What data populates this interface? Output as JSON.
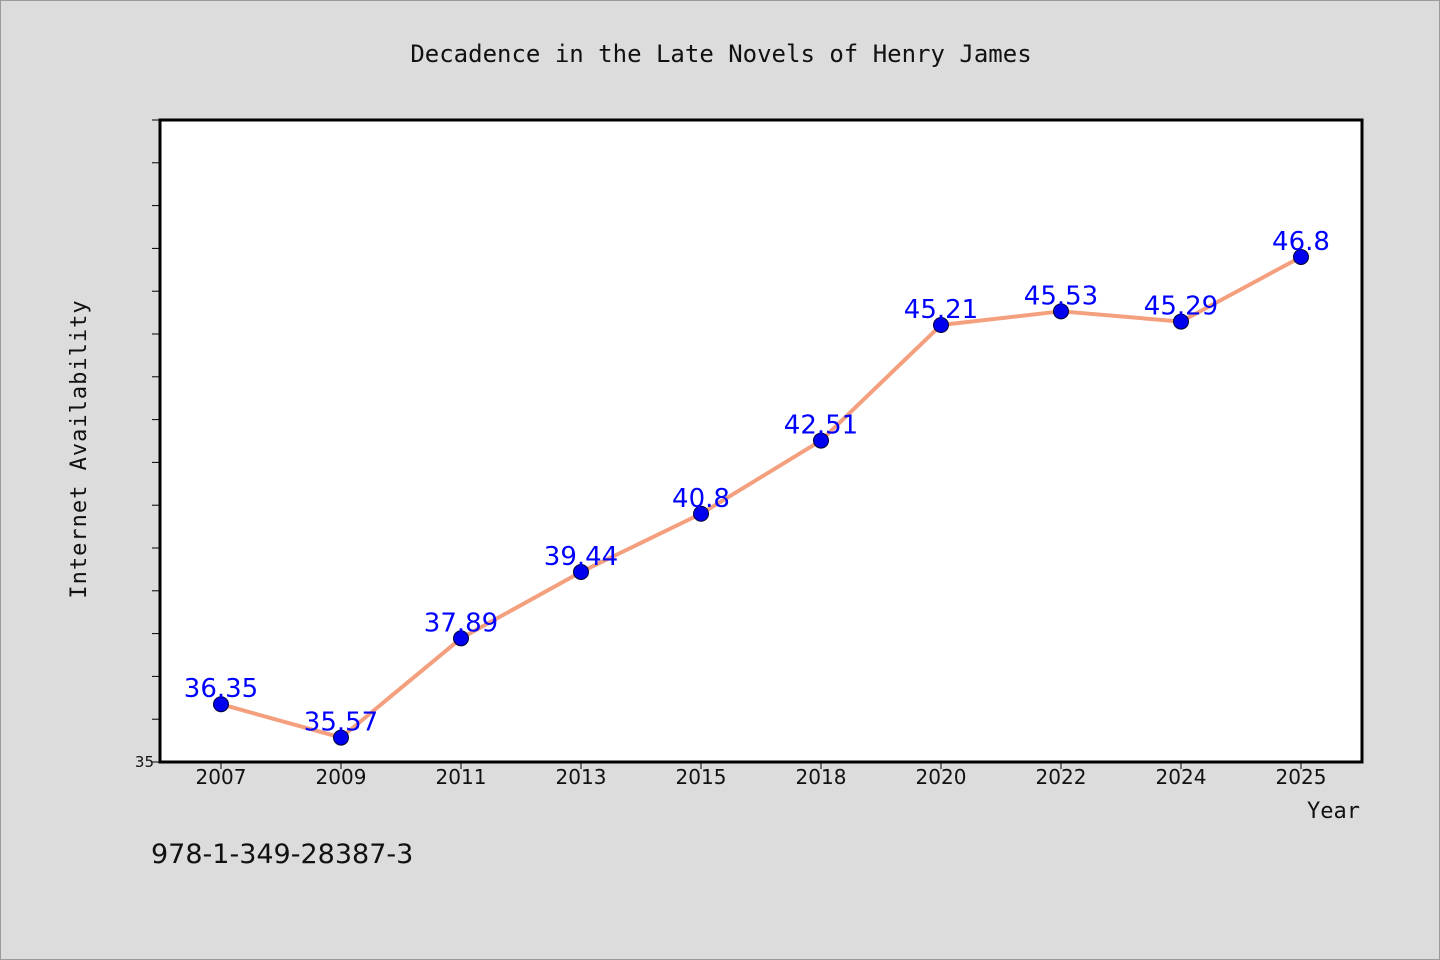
{
  "chart_data": {
    "type": "line",
    "title": "Decadence in the Late Novels of Henry James",
    "xlabel": "Year",
    "ylabel": "Internet Availability",
    "categories": [
      "2007",
      "2009",
      "2011",
      "2013",
      "2015",
      "2018",
      "2020",
      "2022",
      "2024",
      "2025"
    ],
    "values": [
      36.35,
      35.57,
      37.89,
      39.44,
      40.8,
      42.51,
      45.21,
      45.53,
      45.29,
      46.8
    ],
    "data_labels": [
      "36.35",
      "35.57",
      "37.89",
      "39.44",
      "40.8",
      "42.51",
      "45.21",
      "45.53",
      "45.29",
      "46.8"
    ],
    "ylim": [
      35,
      50
    ],
    "y_tick_labels": [
      "35"
    ],
    "grid": false,
    "line_color": "#f4a07e",
    "marker_color": "#0000ee",
    "label_color": "#0000ff"
  },
  "footer": {
    "isbn": "978-1-349-28387-3"
  }
}
